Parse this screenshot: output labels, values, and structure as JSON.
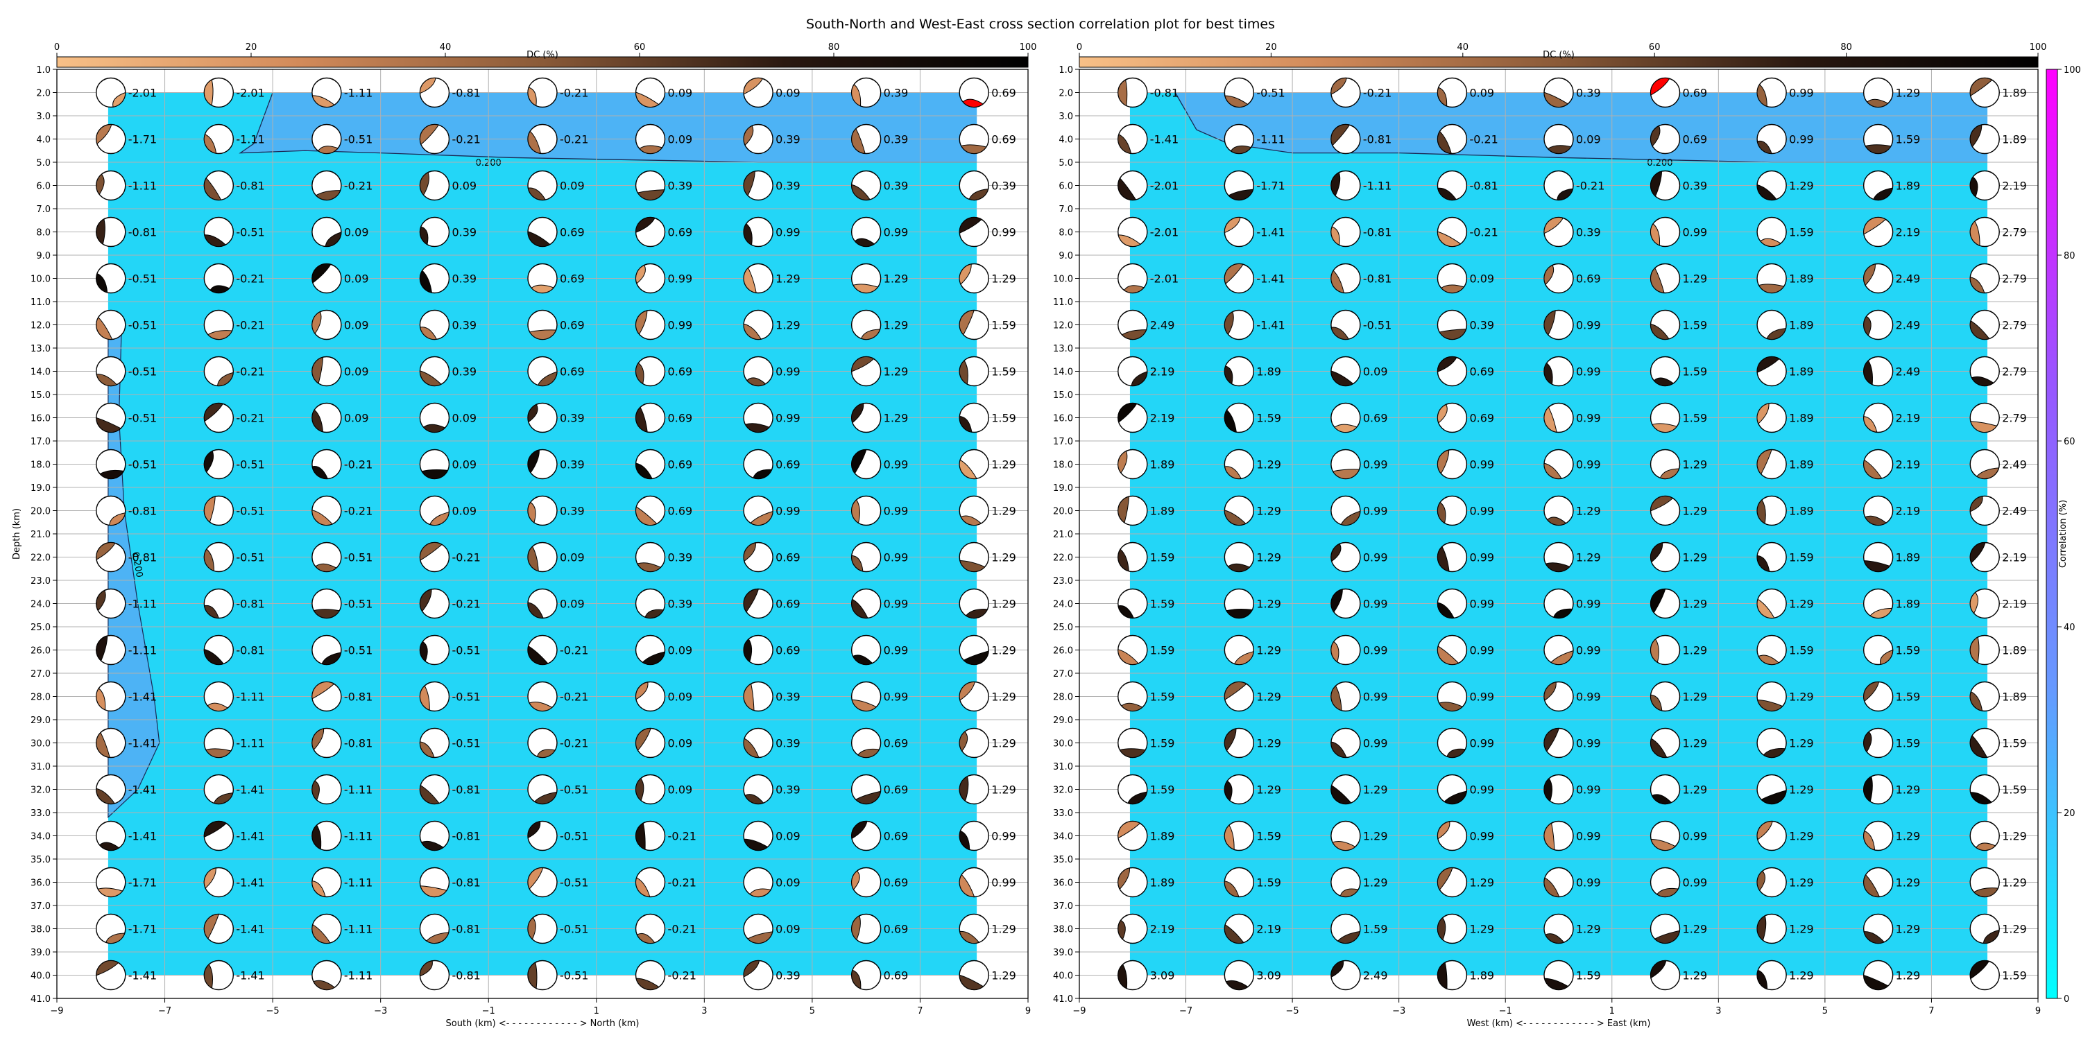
{
  "title": "South-North and West-East cross section correlation plot for best times",
  "chart_data": {
    "type": "heatmap",
    "title": "South-North and West-East cross section correlation plot for best times",
    "depths_km": [
      2,
      4,
      6,
      8,
      10,
      12,
      14,
      16,
      18,
      20,
      22,
      24,
      26,
      28,
      30,
      32,
      34,
      36,
      38,
      40
    ],
    "y_ticks": [
      1.0,
      2.0,
      3.0,
      4.0,
      5.0,
      6.0,
      7.0,
      8.0,
      9.0,
      10.0,
      11.0,
      12.0,
      13.0,
      14.0,
      15.0,
      16.0,
      17.0,
      18.0,
      19.0,
      20.0,
      21.0,
      22.0,
      23.0,
      24.0,
      25.0,
      26.0,
      27.0,
      28.0,
      29.0,
      30.0,
      31.0,
      32.0,
      33.0,
      34.0,
      35.0,
      36.0,
      37.0,
      38.0,
      39.0,
      40.0,
      41.0
    ],
    "ylim": [
      41,
      1
    ],
    "ylabel": "Depth (km)",
    "x_ticks": [
      -9,
      -7,
      -5,
      -3,
      -1,
      1,
      3,
      5,
      7,
      9
    ],
    "xlim": [
      -9,
      9
    ],
    "station_x_km": [
      -8,
      -6,
      -4,
      -2,
      0,
      2,
      4,
      6,
      8
    ],
    "dc_colorbar": {
      "label": "DC (%)",
      "ticks": [
        0,
        20,
        40,
        60,
        80,
        100
      ],
      "colors": [
        "#f8c087",
        "#d28a5a",
        "#8a5a38",
        "#2a1810",
        "#000000"
      ]
    },
    "correlation_colorbar": {
      "label": "Correlation (%)",
      "ticks": [
        0,
        20,
        40,
        60,
        80,
        100
      ],
      "colors": [
        "#00ffff",
        "#6699ff",
        "#9955ff",
        "#ff00ff"
      ]
    },
    "contour_label": "0.200",
    "best_color": "#ff0000",
    "panels": [
      {
        "name": "South-North",
        "xlabel": "South (km) <- - - - - - - - - - - - > North (km)",
        "field_color": "#23d6f7",
        "high_color": "#4db3f5",
        "high_region": [
          [
            -8.05,
            2
          ],
          [
            -5,
            2
          ],
          [
            -5.35,
            4.2
          ],
          [
            -5.6,
            4.6
          ],
          [
            -4.4,
            4.5
          ],
          [
            -3,
            4.6
          ],
          [
            -0.6,
            4.8
          ],
          [
            4,
            5.0
          ],
          [
            8.05,
            5.0
          ],
          [
            8.05,
            2
          ]
        ],
        "sides_region": [
          [
            -8.05,
            11.5
          ],
          [
            -7.8,
            12
          ],
          [
            -7.85,
            16
          ],
          [
            -7.75,
            20
          ],
          [
            -7.5,
            24
          ],
          [
            -7.2,
            28
          ],
          [
            -7.1,
            30
          ],
          [
            -7.5,
            32
          ],
          [
            -8.05,
            33.2
          ]
        ],
        "contour": [
          [
            -5,
            2
          ],
          [
            -5.35,
            4.2
          ],
          [
            -5.6,
            4.6
          ],
          [
            -4.4,
            4.5
          ],
          [
            -3,
            4.6
          ],
          [
            -0.6,
            4.8
          ],
          [
            4,
            5.0
          ],
          [
            8.05,
            5.0
          ]
        ],
        "contour_label_xy": [
          -1.0,
          5.0
        ],
        "side_contour_label_xy": [
          -7.6,
          21.8
        ],
        "shift_values": [
          [
            "-2.01",
            "-2.01",
            "-1.11",
            "-0.81",
            "-0.21",
            "0.09",
            "0.09",
            "0.39",
            "0.69"
          ],
          [
            "-1.71",
            "-1.11",
            "-0.51",
            "-0.21",
            "-0.21",
            "0.09",
            "0.39",
            "0.39",
            "0.69"
          ],
          [
            "-1.11",
            "-0.81",
            "-0.21",
            "0.09",
            "0.09",
            "0.39",
            "0.39",
            "0.39",
            "0.39"
          ],
          [
            "-0.81",
            "-0.51",
            "0.09",
            "0.39",
            "0.69",
            "0.69",
            "0.99",
            "0.99",
            "0.99"
          ],
          [
            "-0.51",
            "-0.21",
            "0.09",
            "0.39",
            "0.69",
            "0.99",
            "1.29",
            "1.29",
            "1.29"
          ],
          [
            "-0.51",
            "-0.21",
            "0.09",
            "0.39",
            "0.69",
            "0.99",
            "1.29",
            "1.29",
            "1.59"
          ],
          [
            "-0.51",
            "-0.21",
            "0.09",
            "0.39",
            "0.69",
            "0.69",
            "0.99",
            "1.29",
            "1.59"
          ],
          [
            "-0.51",
            "-0.21",
            "0.09",
            "0.09",
            "0.39",
            "0.69",
            "0.99",
            "1.29",
            "1.59"
          ],
          [
            "-0.51",
            "-0.51",
            "-0.21",
            "0.09",
            "0.39",
            "0.69",
            "0.69",
            "0.99",
            "1.29"
          ],
          [
            "-0.81",
            "-0.51",
            "-0.21",
            "0.09",
            "0.39",
            "0.69",
            "0.99",
            "0.99",
            "1.29"
          ],
          [
            "-0.81",
            "-0.51",
            "-0.51",
            "-0.21",
            "0.09",
            "0.39",
            "0.69",
            "0.99",
            "1.29"
          ],
          [
            "-1.11",
            "-0.81",
            "-0.51",
            "-0.21",
            "0.09",
            "0.39",
            "0.69",
            "0.99",
            "1.29"
          ],
          [
            "-1.11",
            "-0.81",
            "-0.51",
            "-0.51",
            "-0.21",
            "0.09",
            "0.69",
            "0.99",
            "1.29"
          ],
          [
            "-1.41",
            "-1.11",
            "-0.81",
            "-0.51",
            "-0.21",
            "0.09",
            "0.39",
            "0.99",
            "1.29"
          ],
          [
            "-1.41",
            "-1.11",
            "-0.81",
            "-0.51",
            "-0.21",
            "0.09",
            "0.39",
            "0.69",
            "1.29"
          ],
          [
            "-1.41",
            "-1.41",
            "-1.11",
            "-0.81",
            "-0.51",
            "0.09",
            "0.39",
            "0.69",
            "1.29"
          ],
          [
            "-1.41",
            "-1.41",
            "-1.11",
            "-0.81",
            "-0.51",
            "-0.21",
            "0.09",
            "0.69",
            "0.99"
          ],
          [
            "-1.71",
            "-1.41",
            "-1.11",
            "-0.81",
            "-0.51",
            "-0.21",
            "0.09",
            "0.69",
            "0.99"
          ],
          [
            "-1.71",
            "-1.41",
            "-1.11",
            "-0.81",
            "-0.51",
            "-0.21",
            "0.09",
            "0.69",
            "1.29"
          ],
          [
            "-1.41",
            "-1.41",
            "-1.11",
            "-0.81",
            "-0.51",
            "-0.21",
            "0.39",
            "0.69",
            "1.29"
          ]
        ],
        "best": [
          0,
          8
        ]
      },
      {
        "name": "West-East",
        "xlabel": "West (km) <- - - - - - - - - - - - > East (km)",
        "field_color": "#23d6f7",
        "high_color": "#4db3f5",
        "high_region": [
          [
            -7.2,
            2
          ],
          [
            8.05,
            2
          ],
          [
            8.05,
            5.0
          ],
          [
            4,
            5.0
          ],
          [
            0,
            4.8
          ],
          [
            -3,
            4.6
          ],
          [
            -5,
            4.6
          ],
          [
            -6.2,
            4.2
          ],
          [
            -6.8,
            3.6
          ],
          [
            -7.2,
            2
          ]
        ],
        "sides_region": [],
        "contour": [
          [
            -7.2,
            2
          ],
          [
            -6.8,
            3.6
          ],
          [
            -6.2,
            4.2
          ],
          [
            -5,
            4.6
          ],
          [
            -3,
            4.6
          ],
          [
            0,
            4.8
          ],
          [
            4,
            5.0
          ],
          [
            8.05,
            5.0
          ]
        ],
        "contour_label_xy": [
          1.9,
          5.0
        ],
        "side_contour_label_xy": null,
        "shift_values": [
          [
            "-0.81",
            "-0.51",
            "-0.21",
            "0.09",
            "0.39",
            "0.69",
            "0.99",
            "1.29",
            "1.89"
          ],
          [
            "-1.41",
            "-1.11",
            "-0.81",
            "-0.21",
            "0.09",
            "0.69",
            "0.99",
            "1.59",
            "1.89"
          ],
          [
            "-2.01",
            "-1.71",
            "-1.11",
            "-0.81",
            "-0.21",
            "0.39",
            "1.29",
            "1.89",
            "2.19"
          ],
          [
            "-2.01",
            "-1.41",
            "-0.81",
            "-0.21",
            "0.39",
            "0.99",
            "1.59",
            "2.19",
            "2.79"
          ],
          [
            "-2.01",
            "-1.41",
            "-0.81",
            "0.09",
            "0.69",
            "1.29",
            "1.89",
            "2.49",
            "2.79"
          ],
          [
            "2.49",
            "-1.41",
            "-0.51",
            "0.39",
            "0.99",
            "1.59",
            "1.89",
            "2.49",
            "2.79"
          ],
          [
            "2.19",
            "1.89",
            "0.09",
            "0.69",
            "0.99",
            "1.59",
            "1.89",
            "2.49",
            "2.79"
          ],
          [
            "2.19",
            "1.59",
            "0.69",
            "0.69",
            "0.99",
            "1.59",
            "1.89",
            "2.19",
            "2.79"
          ],
          [
            "1.89",
            "1.29",
            "0.99",
            "0.99",
            "0.99",
            "1.29",
            "1.89",
            "2.19",
            "2.49"
          ],
          [
            "1.89",
            "1.29",
            "0.99",
            "0.99",
            "1.29",
            "1.29",
            "1.89",
            "2.19",
            "2.49"
          ],
          [
            "1.59",
            "1.29",
            "0.99",
            "0.99",
            "1.29",
            "1.29",
            "1.59",
            "1.89",
            "2.19"
          ],
          [
            "1.59",
            "1.29",
            "0.99",
            "0.99",
            "0.99",
            "1.29",
            "1.29",
            "1.89",
            "2.19"
          ],
          [
            "1.59",
            "1.29",
            "0.99",
            "0.99",
            "0.99",
            "1.29",
            "1.59",
            "1.59",
            "1.89"
          ],
          [
            "1.59",
            "1.29",
            "0.99",
            "0.99",
            "0.99",
            "1.29",
            "1.29",
            "1.59",
            "1.89"
          ],
          [
            "1.59",
            "1.29",
            "0.99",
            "0.99",
            "0.99",
            "1.29",
            "1.29",
            "1.59",
            "1.59"
          ],
          [
            "1.59",
            "1.29",
            "1.29",
            "0.99",
            "0.99",
            "1.29",
            "1.29",
            "1.29",
            "1.59"
          ],
          [
            "1.89",
            "1.59",
            "1.29",
            "0.99",
            "0.99",
            "0.99",
            "1.29",
            "1.29",
            "1.29"
          ],
          [
            "1.89",
            "1.59",
            "1.29",
            "1.29",
            "0.99",
            "0.99",
            "1.29",
            "1.29",
            "1.29"
          ],
          [
            "2.19",
            "2.19",
            "1.59",
            "1.29",
            "1.29",
            "1.29",
            "1.29",
            "1.29",
            "1.29"
          ],
          [
            "3.09",
            "3.09",
            "2.49",
            "1.89",
            "1.59",
            "1.29",
            "1.29",
            "1.29",
            "1.59"
          ]
        ],
        "best": [
          0,
          5
        ]
      }
    ]
  }
}
